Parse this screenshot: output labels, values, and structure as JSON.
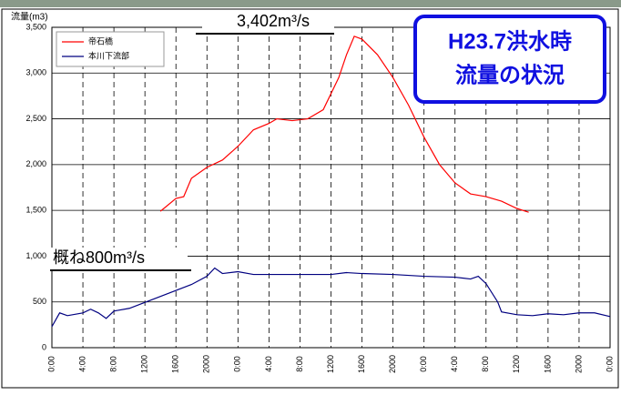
{
  "chart_data": {
    "type": "line",
    "y_label": "流量(m3)",
    "annotations": [
      "3,402m³/s",
      "概ね800m³/s"
    ],
    "box_lines": [
      "H23.7洪水時",
      "流量の状況"
    ],
    "xlim": [
      0,
      72
    ],
    "ylim": [
      0,
      3500
    ],
    "xticks": [
      {
        "value": 0,
        "label": "0:00"
      },
      {
        "value": 4,
        "label": "4:00"
      },
      {
        "value": 8,
        "label": "8:00"
      },
      {
        "value": 12,
        "label": "1200"
      },
      {
        "value": 16,
        "label": "1600"
      },
      {
        "value": 20,
        "label": "2000"
      },
      {
        "value": 24,
        "label": "0:00"
      },
      {
        "value": 28,
        "label": "4:00"
      },
      {
        "value": 32,
        "label": "8:00"
      },
      {
        "value": 36,
        "label": "1200"
      },
      {
        "value": 40,
        "label": "1600"
      },
      {
        "value": 44,
        "label": "2000"
      },
      {
        "value": 48,
        "label": "0:00"
      },
      {
        "value": 52,
        "label": "4:00"
      },
      {
        "value": 56,
        "label": "8:00"
      },
      {
        "value": 60,
        "label": "1200"
      },
      {
        "value": 64,
        "label": "1600"
      },
      {
        "value": 68,
        "label": "2000"
      },
      {
        "value": 72,
        "label": "0:00"
      }
    ],
    "yticks": [
      0,
      500,
      {
        "value": 1000,
        "label": "1,000"
      },
      {
        "value": 1500,
        "label": "1,500"
      },
      {
        "value": 2000,
        "label": "2,000"
      },
      {
        "value": 2500,
        "label": "2,500"
      },
      {
        "value": 3000,
        "label": "3,000"
      },
      {
        "value": 3500,
        "label": "3,500"
      }
    ],
    "grid": true,
    "series": [
      {
        "name": "帝石橋",
        "color": "#ff0000",
        "x": [
          14,
          16,
          17,
          18,
          20,
          22,
          24,
          26,
          28,
          29,
          31,
          33,
          35,
          37,
          38,
          39,
          40,
          42,
          44,
          46,
          48,
          50,
          52,
          54,
          56,
          58,
          60,
          61.5
        ],
        "values": [
          1490,
          1630,
          1650,
          1850,
          1970,
          2050,
          2200,
          2380,
          2450,
          2500,
          2480,
          2500,
          2600,
          2950,
          3200,
          3402,
          3370,
          3200,
          2950,
          2650,
          2300,
          2000,
          1800,
          1680,
          1650,
          1600,
          1520,
          1480
        ]
      },
      {
        "name": "本川下流部",
        "color": "#000080",
        "x": [
          0,
          1,
          2,
          4,
          5,
          6,
          7,
          8,
          10,
          14,
          18,
          20,
          21,
          22,
          24,
          26,
          30,
          36,
          38,
          40,
          44,
          48,
          52,
          54,
          55,
          56,
          57.5,
          58,
          60,
          62,
          64,
          66,
          68,
          70,
          72
        ],
        "values": [
          230,
          380,
          350,
          380,
          420,
          380,
          320,
          400,
          430,
          560,
          690,
          780,
          870,
          810,
          830,
          800,
          800,
          800,
          820,
          810,
          800,
          780,
          770,
          750,
          780,
          700,
          500,
          390,
          360,
          350,
          370,
          360,
          380,
          380,
          340
        ]
      }
    ]
  }
}
